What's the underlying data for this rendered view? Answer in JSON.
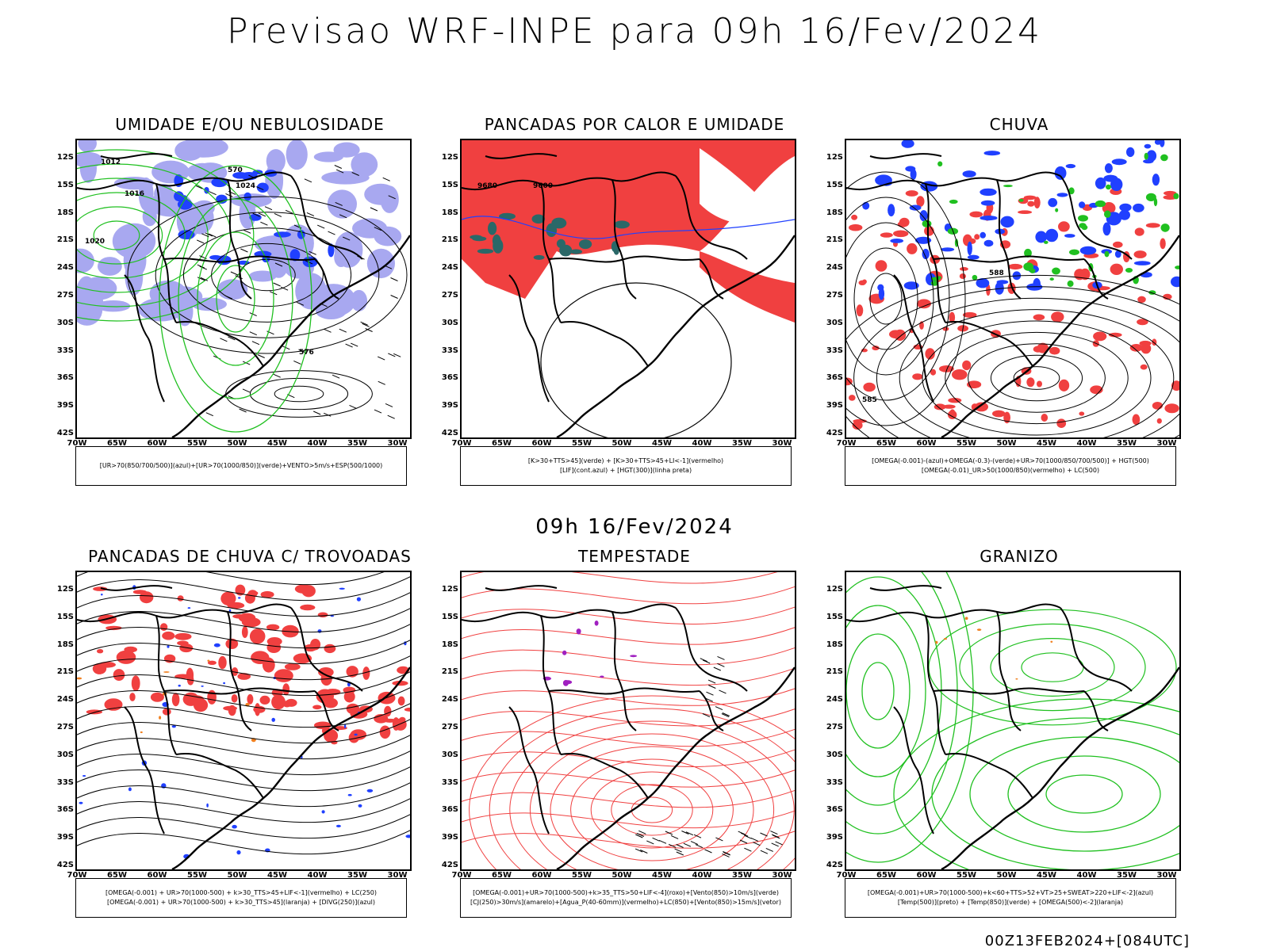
{
  "header": {
    "title": "Previsao WRF-INPE  para 09h 16/Fev/2024"
  },
  "middle": {
    "time": "09h 16/Fev/2024"
  },
  "footer": {
    "run": "00Z13FEB2024+[084UTC]"
  },
  "axes": {
    "lat": [
      "12S",
      "15S",
      "18S",
      "21S",
      "24S",
      "27S",
      "30S",
      "33S",
      "36S",
      "39S",
      "42S"
    ],
    "lon": [
      "70W",
      "65W",
      "60W",
      "55W",
      "50W",
      "45W",
      "40W",
      "35W",
      "30W"
    ]
  },
  "panels": [
    {
      "id": "umidade",
      "title": "UMIDADE E/OU NEBULOSIDADE",
      "legend": [
        "[UR>70(850/700/500)](azul)+[UR>70(1000/850)](verde)+VENTO>5m/s+ESP(500/1000)"
      ]
    },
    {
      "id": "pancadas-calor",
      "title": "PANCADAS POR CALOR E UMIDADE",
      "legend": [
        "[K>30+TTS>45](verde) + [K>30+TTS>45+LI<-1](vermelho)",
        "[LIF](cont.azul) + [HGT(300)](linha preta)"
      ]
    },
    {
      "id": "chuva",
      "title": "CHUVA",
      "legend": [
        "[OMEGA(-0.001)-(azul)+OMEGA(-0.3)-(verde)+UR>70(1000/850/700/500)] + HGT(500)",
        "[OMEGA(-0.01)_UR>50(1000/850)(vermelho) + LC(500)"
      ]
    },
    {
      "id": "trovoadas",
      "title": "PANCADAS DE CHUVA C/ TROVOADAS",
      "legend": [
        "[OMEGA(-0.001) + UR>70(1000-500) + k>30_TTS>45+LIF<-1](vermelho) + LC(250)",
        "[OMEGA(-0.001) + UR>70(1000-500) + k>30_TTS>45](laranja) + [DIVG(250)](azul)"
      ]
    },
    {
      "id": "tempestade",
      "title": "TEMPESTADE",
      "legend": [
        "[OMEGA(-0.001)+UR>70(1000-500)+k>35_TTS>50+LIF<-4](roxo)+[Vento(850)>10m/s](verde)",
        "[CJ(250)>30m/s](amarelo)+[Agua_P(40-60mm)](vermelho)+LC(850)+[Vento(850)>15m/s](vetor)"
      ]
    },
    {
      "id": "granizo",
      "title": "GRANIZO",
      "legend": [
        "[OMEGA(-0.001)+UR>70(1000-500)+k<60+TTS>52+VT>25+SWEAT>220+LIF<-2](azul)",
        "[Temp(500)](preto) + [Temp(850)](verde) + [OMEGA(500)<-2](laranja)"
      ]
    }
  ],
  "contour_labels": {
    "umidade": [
      "1012",
      "1016",
      "1020",
      "1024",
      "576",
      "570"
    ],
    "pancadas-calor": [
      "9680",
      "9600"
    ],
    "chuva": [
      "585",
      "588"
    ]
  },
  "colors": {
    "azul": "#2040ff",
    "verde": "#20c020",
    "vermelho": "#f04040",
    "laranja": "#f08020",
    "roxo": "#a020c0",
    "lavanda": "#a8a8f0"
  }
}
